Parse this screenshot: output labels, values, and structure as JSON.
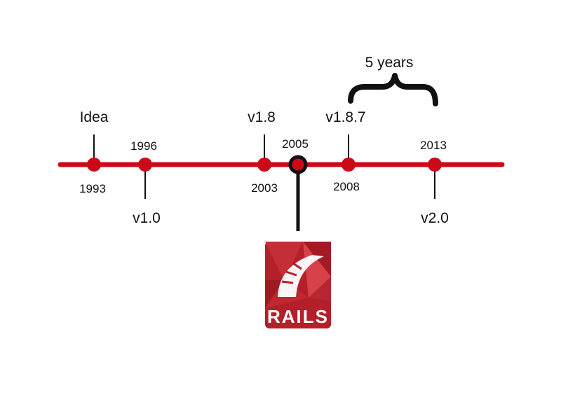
{
  "timeline": {
    "milestones": [
      {
        "year": "1993",
        "event": "Idea"
      },
      {
        "year": "1996",
        "event": "v1.0"
      },
      {
        "year": "2003",
        "event": "v1.8"
      },
      {
        "year": "2005",
        "event": ""
      },
      {
        "year": "2008",
        "event": "v1.8.7"
      },
      {
        "year": "2013",
        "event": "v2.0"
      }
    ],
    "highlighted_year": "2005",
    "brace_label": "5 years"
  },
  "logo": {
    "text": "RAILS"
  },
  "colors": {
    "line": "#cc0a17",
    "marker": "#cc0a17",
    "highlight_ring": "#111111",
    "logo_bg": "#b3202a",
    "logo_facet": "#d9414a"
  }
}
